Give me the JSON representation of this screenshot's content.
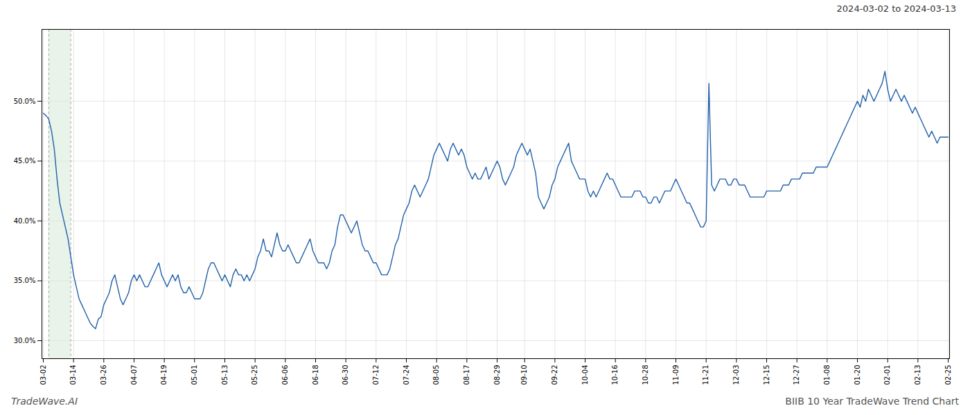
{
  "chart_data": {
    "type": "line",
    "annotations": [
      "2024-03-02 to 2024-03-13",
      "TradeWave.AI",
      "BIIB 10 Year TradeWave Trend Chart"
    ],
    "color": "#2060a8",
    "highlight": {
      "from": 2,
      "to": 10,
      "color": "#d6ead7"
    },
    "grid": true,
    "ylim": [
      28.5,
      56.0
    ],
    "yticks": [
      {
        "value": 30.0,
        "label": "30.0%"
      },
      {
        "value": 35.0,
        "label": "35.0%"
      },
      {
        "value": 40.0,
        "label": "40.0%"
      },
      {
        "value": 45.0,
        "label": "45.0%"
      },
      {
        "value": 50.0,
        "label": "50.0%"
      }
    ],
    "categories": [
      "03-02",
      null,
      null,
      null,
      null,
      null,
      null,
      null,
      null,
      null,
      null,
      "03-14",
      null,
      null,
      null,
      null,
      null,
      null,
      null,
      null,
      null,
      null,
      "03-26",
      null,
      null,
      null,
      null,
      null,
      null,
      null,
      null,
      null,
      null,
      "04-07",
      null,
      null,
      null,
      null,
      null,
      null,
      null,
      null,
      null,
      null,
      "04-19",
      null,
      null,
      null,
      null,
      null,
      null,
      null,
      null,
      null,
      null,
      "05-01",
      null,
      null,
      null,
      null,
      null,
      null,
      null,
      null,
      null,
      null,
      "05-13",
      null,
      null,
      null,
      null,
      null,
      null,
      null,
      null,
      null,
      null,
      "05-25",
      null,
      null,
      null,
      null,
      null,
      null,
      null,
      null,
      null,
      null,
      "06-06",
      null,
      null,
      null,
      null,
      null,
      null,
      null,
      null,
      null,
      null,
      "06-18",
      null,
      null,
      null,
      null,
      null,
      null,
      null,
      null,
      null,
      null,
      "06-30",
      null,
      null,
      null,
      null,
      null,
      null,
      null,
      null,
      null,
      null,
      "07-12",
      null,
      null,
      null,
      null,
      null,
      null,
      null,
      null,
      null,
      null,
      "07-24",
      null,
      null,
      null,
      null,
      null,
      null,
      null,
      null,
      null,
      null,
      "08-05",
      null,
      null,
      null,
      null,
      null,
      null,
      null,
      null,
      null,
      null,
      "08-17",
      null,
      null,
      null,
      null,
      null,
      null,
      null,
      null,
      null,
      null,
      "08-29",
      null,
      null,
      null,
      null,
      null,
      null,
      null,
      null,
      null,
      "09-10",
      null,
      null,
      null,
      null,
      null,
      null,
      null,
      null,
      null,
      null,
      "09-22",
      null,
      null,
      null,
      null,
      null,
      null,
      null,
      null,
      null,
      null,
      "10-04",
      null,
      null,
      null,
      null,
      null,
      null,
      null,
      null,
      null,
      null,
      "10-16",
      null,
      null,
      null,
      null,
      null,
      null,
      null,
      null,
      null,
      null,
      "10-28",
      null,
      null,
      null,
      null,
      null,
      null,
      null,
      null,
      null,
      null,
      "11-09",
      null,
      null,
      null,
      null,
      null,
      null,
      null,
      null,
      null,
      null,
      "11-21",
      null,
      null,
      null,
      null,
      null,
      null,
      null,
      null,
      null,
      null,
      "12-03",
      null,
      null,
      null,
      null,
      null,
      null,
      null,
      null,
      null,
      null,
      "12-15",
      null,
      null,
      null,
      null,
      null,
      null,
      null,
      null,
      null,
      null,
      "12-27",
      null,
      null,
      null,
      null,
      null,
      null,
      null,
      null,
      null,
      null,
      "01-08",
      null,
      null,
      null,
      null,
      null,
      null,
      null,
      null,
      null,
      null,
      "01-20",
      null,
      null,
      null,
      null,
      null,
      null,
      null,
      null,
      null,
      null,
      "02-01",
      null,
      null,
      null,
      null,
      null,
      null,
      null,
      null,
      null,
      null,
      "02-13",
      null,
      null,
      null,
      null,
      null,
      null,
      null,
      null,
      null,
      null,
      "02-25"
    ],
    "values": [
      49.0,
      48.8,
      48.5,
      47.5,
      46.0,
      43.5,
      41.5,
      40.5,
      39.5,
      38.5,
      37.0,
      35.5,
      34.5,
      33.5,
      33.0,
      32.5,
      32.0,
      31.5,
      31.2,
      31.0,
      31.8,
      32.0,
      33.0,
      33.5,
      34.0,
      35.0,
      35.5,
      34.5,
      33.5,
      33.0,
      33.5,
      34.0,
      35.0,
      35.5,
      35.0,
      35.5,
      35.0,
      34.5,
      34.5,
      35.0,
      35.5,
      36.0,
      36.5,
      35.5,
      35.0,
      34.5,
      35.0,
      35.5,
      35.0,
      35.5,
      34.5,
      34.0,
      34.0,
      34.5,
      34.0,
      33.5,
      33.5,
      33.5,
      34.0,
      35.0,
      36.0,
      36.5,
      36.5,
      36.0,
      35.5,
      35.0,
      35.5,
      35.0,
      34.5,
      35.5,
      36.0,
      35.5,
      35.5,
      35.0,
      35.5,
      35.0,
      35.5,
      36.0,
      37.0,
      37.5,
      38.5,
      37.5,
      37.5,
      37.0,
      38.0,
      39.0,
      38.0,
      37.5,
      37.5,
      38.0,
      37.5,
      37.0,
      36.5,
      36.5,
      37.0,
      37.5,
      38.0,
      38.5,
      37.5,
      37.0,
      36.5,
      36.5,
      36.5,
      36.0,
      36.5,
      37.5,
      38.0,
      39.5,
      40.5,
      40.5,
      40.0,
      39.5,
      39.0,
      39.5,
      40.0,
      39.0,
      38.0,
      37.5,
      37.5,
      37.0,
      36.5,
      36.5,
      36.0,
      35.5,
      35.5,
      35.5,
      36.0,
      37.0,
      38.0,
      38.5,
      39.5,
      40.5,
      41.0,
      41.5,
      42.5,
      43.0,
      42.5,
      42.0,
      42.5,
      43.0,
      43.5,
      44.5,
      45.5,
      46.0,
      46.5,
      46.0,
      45.5,
      45.0,
      46.0,
      46.5,
      46.0,
      45.5,
      46.0,
      45.5,
      44.5,
      44.0,
      43.5,
      44.0,
      43.5,
      43.5,
      44.0,
      44.5,
      43.5,
      44.0,
      44.5,
      45.0,
      44.5,
      43.5,
      43.0,
      43.5,
      44.0,
      44.5,
      45.5,
      46.0,
      46.5,
      46.0,
      45.5,
      46.0,
      45.0,
      44.0,
      42.0,
      41.5,
      41.0,
      41.5,
      42.0,
      43.0,
      43.5,
      44.5,
      45.0,
      45.5,
      46.0,
      46.5,
      45.0,
      44.5,
      44.0,
      43.5,
      43.5,
      43.5,
      42.5,
      42.0,
      42.5,
      42.0,
      42.5,
      43.0,
      43.5,
      44.0,
      43.5,
      43.5,
      43.0,
      42.5,
      42.0,
      42.0,
      42.0,
      42.0,
      42.0,
      42.5,
      42.5,
      42.5,
      42.0,
      42.0,
      41.5,
      41.5,
      42.0,
      42.0,
      41.5,
      42.0,
      42.5,
      42.5,
      42.5,
      43.0,
      43.5,
      43.0,
      42.5,
      42.0,
      41.5,
      41.5,
      41.0,
      40.5,
      40.0,
      39.5,
      39.5,
      40.0,
      51.5,
      43.0,
      42.5,
      43.0,
      43.5,
      43.5,
      43.5,
      43.0,
      43.0,
      43.5,
      43.5,
      43.0,
      43.0,
      43.0,
      42.5,
      42.0,
      42.0,
      42.0,
      42.0,
      42.0,
      42.0,
      42.5,
      42.5,
      42.5,
      42.5,
      42.5,
      42.5,
      43.0,
      43.0,
      43.0,
      43.5,
      43.5,
      43.5,
      43.5,
      44.0,
      44.0,
      44.0,
      44.0,
      44.0,
      44.5,
      44.5,
      44.5,
      44.5,
      44.5,
      45.0,
      45.5,
      46.0,
      46.5,
      47.0,
      47.5,
      48.0,
      48.5,
      49.0,
      49.5,
      50.0,
      49.5,
      50.5,
      50.0,
      51.0,
      50.5,
      50.0,
      50.5,
      51.0,
      51.5,
      52.5,
      51.0,
      50.0,
      50.5,
      51.0,
      50.5,
      50.0,
      50.5,
      50.0,
      49.5,
      49.0,
      49.5,
      49.0,
      48.5,
      48.0,
      47.5,
      47.0,
      47.5,
      47.0,
      46.5,
      47.0,
      47.0,
      47.0,
      47.0
    ]
  }
}
